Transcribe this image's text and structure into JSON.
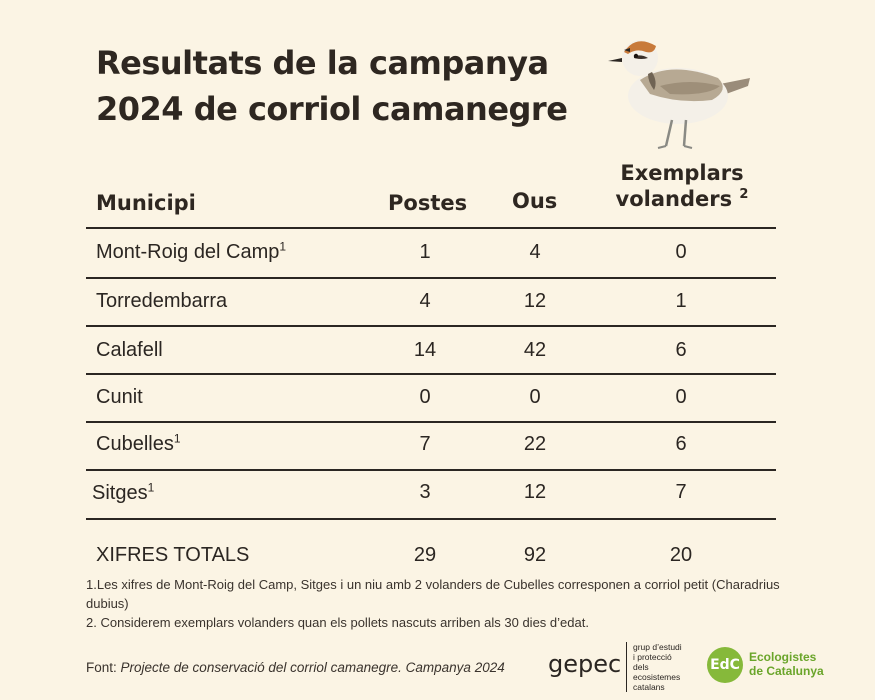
{
  "title_line1": "Resultats de la campanya",
  "title_line2": "2024 de corriol camanegre",
  "headers": {
    "municipi": "Municipi",
    "postes": "Postes",
    "ous": "Ous",
    "exemplars_line1": "Exemplars",
    "exemplars_line2": "volanders",
    "exemplars_sup": "2"
  },
  "rows": [
    {
      "municipi": "Mont-Roig del Camp",
      "sup": "1",
      "postes": "1",
      "ous": "4",
      "exemplars": "0"
    },
    {
      "municipi": "Torredembarra",
      "sup": "",
      "postes": "4",
      "ous": "12",
      "exemplars": "1"
    },
    {
      "municipi": "Calafell",
      "sup": "",
      "postes": "14",
      "ous": "42",
      "exemplars": "6"
    },
    {
      "municipi": "Cunit",
      "sup": "",
      "postes": "0",
      "ous": "0",
      "exemplars": "0"
    },
    {
      "municipi": "Cubelles",
      "sup": "1",
      "postes": "7",
      "ous": "22",
      "exemplars": "6"
    },
    {
      "municipi": "Sitges",
      "sup": "1",
      "postes": "3",
      "ous": "12",
      "exemplars": "7"
    }
  ],
  "totals": {
    "label": "XIFRES TOTALS",
    "postes": "29",
    "ous": "92",
    "exemplars": "20"
  },
  "notes": {
    "note1": "1.Les xifres de Mont-Roig del Camp, Sitges i un niu amb 2 volanders de Cubelles corresponen a corriol petit (Charadrius dubius)",
    "note2": "2. Considerem exemplars volanders quan els pollets nascuts arriben als 30 dies d’edat."
  },
  "source": {
    "prefix": "Font: ",
    "text": "Projecte de conservació del corriol camanegre. Campanya 2024"
  },
  "logos": {
    "gepec_word": "gepec",
    "gepec_sub1": "grup d’estudi",
    "gepec_sub2": "i protecció",
    "gepec_sub3": "dels ecosistemes",
    "gepec_sub4": "catalans",
    "edc_mark": "EdC",
    "edc_line1": "Ecologistes",
    "edc_line2": "de Catalunya"
  },
  "colors": {
    "background": "#fbf4e4",
    "text": "#2b2622",
    "edc_green": "#86b93a"
  }
}
